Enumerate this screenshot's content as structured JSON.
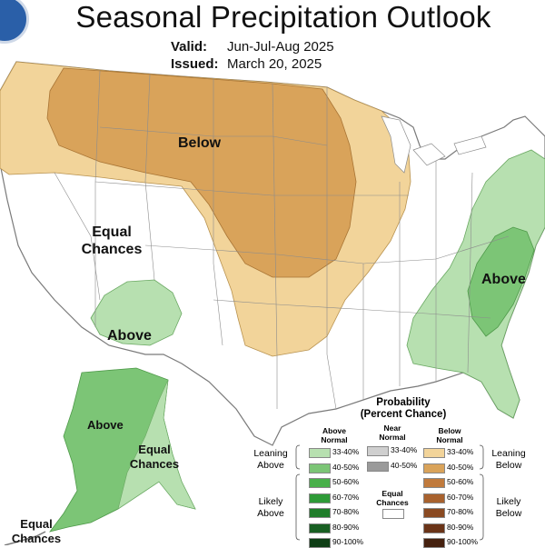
{
  "title": "Seasonal Precipitation Outlook",
  "valid_label": "Valid:",
  "valid_value": "Jun-Jul-Aug 2025",
  "issued_label": "Issued:",
  "issued_value": "March 20, 2025",
  "labels": {
    "below": "Below",
    "equal_west_1": "Equal",
    "equal_west_2": "Chances",
    "above_sw": "Above",
    "above_east": "Above",
    "above_alaska": "Above",
    "equal_ak_1": "Equal",
    "equal_ak_2": "Chances",
    "equal_aleut_1": "Equal",
    "equal_aleut_2": "Chances"
  },
  "colors": {
    "below_33_40": "#f2d49a",
    "below_40_50": "#d9a35a",
    "above_33_40": "#b7e0b0",
    "above_40_50": "#7cc576",
    "near_33_40": "#cfcfcf",
    "near_40_50": "#9a9a9a",
    "state_line": "#9a9a9a",
    "water": "#ffffff"
  },
  "legend": {
    "title_1": "Probability",
    "title_2": "(Percent Chance)",
    "above_header_1": "Above",
    "above_header_2": "Normal",
    "near_header_1": "Near",
    "near_header_2": "Normal",
    "below_header_1": "Below",
    "below_header_2": "Normal",
    "leaning_1": "Leaning",
    "leaning_above": "Above",
    "leaning_below": "Below",
    "likely_1": "Likely",
    "likely_above": "Above",
    "likely_below": "Below",
    "equal_1": "Equal",
    "equal_2": "Chances",
    "above_rows": [
      {
        "label": "33-40%",
        "color": "#b7e0b0"
      },
      {
        "label": "40-50%",
        "color": "#7cc576"
      },
      {
        "label": "50-60%",
        "color": "#48b04a"
      },
      {
        "label": "60-70%",
        "color": "#2e9a37"
      },
      {
        "label": "70-80%",
        "color": "#1f7d2a"
      },
      {
        "label": "80-90%",
        "color": "#185f22"
      },
      {
        "label": "90-100%",
        "color": "#0e3e15"
      }
    ],
    "near_rows": [
      {
        "label": "33-40%",
        "color": "#cfcfcf"
      },
      {
        "label": "40-50%",
        "color": "#9a9a9a"
      }
    ],
    "below_rows": [
      {
        "label": "33-40%",
        "color": "#f2d49a"
      },
      {
        "label": "40-50%",
        "color": "#d9a35a"
      },
      {
        "label": "50-60%",
        "color": "#c07a3c"
      },
      {
        "label": "60-70%",
        "color": "#a8622e"
      },
      {
        "label": "70-80%",
        "color": "#8a4a22"
      },
      {
        "label": "80-90%",
        "color": "#6a3418"
      },
      {
        "label": "90-100%",
        "color": "#45210f"
      }
    ]
  }
}
